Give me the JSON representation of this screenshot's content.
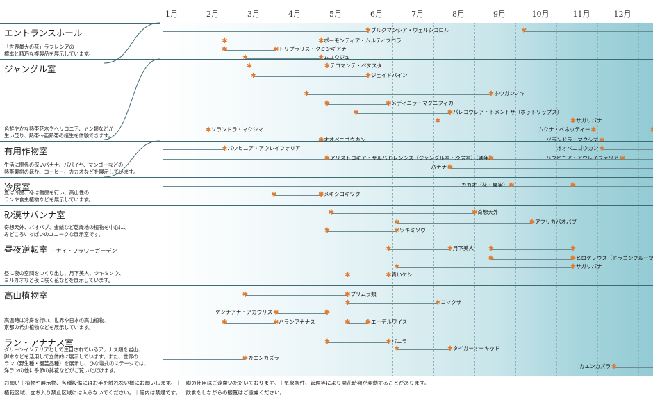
{
  "months": [
    "1月",
    "2月",
    "3月",
    "4月",
    "5月",
    "6月",
    "7月",
    "8月",
    "9月",
    "10月",
    "11月",
    "12月"
  ],
  "sections": [
    {
      "id": "entrance",
      "title": "エントランスホール",
      "subtitle": "",
      "desc": "「世界最大の花」ラフレシアの\n標本と精巧な複製品を展示しています。"
    },
    {
      "id": "jungle",
      "title": "ジャングル室",
      "subtitle": "",
      "desc": "色鮮やかな熱帯花木やヘリコニア、ヤシ類などが\n生い茂り、熱帯～亜熱帯の植生を体験できます。"
    },
    {
      "id": "useful",
      "title": "有用作物室",
      "subtitle": "",
      "desc": "生活に関係の深いバナナ、パパイヤ、マンゴーなどの\n熱帯果樹のほか、コーヒー、カカオなどを展示しています。"
    },
    {
      "id": "cool",
      "title": "冷房室",
      "subtitle": "",
      "desc": "夏は冷房、冬は暖房を行い、高山性の\nランや食虫植物などを展示しています。"
    },
    {
      "id": "desert",
      "title": "砂漠サバンナ室",
      "subtitle": "",
      "desc": "奇想天外、バオバブ、金鯱など乾燥地の植物を中心に、\nみどころいっぱいのユニークな展示室です。"
    },
    {
      "id": "night",
      "title": "昼夜逆転室",
      "subtitle": "－ナイトフラワーガーデン",
      "desc": "昼に夜の空間をつくり出し、月下美人、ツキミソウ、\nヨルガオなど夜に咲く花などを展示しています。"
    },
    {
      "id": "alpine",
      "title": "高山植物室",
      "subtitle": "",
      "desc": "高温時は冷房を行い、世界や日本の高山植物、\n京都の希少植物などを展示しています。"
    },
    {
      "id": "orchid",
      "title": "ラン・アナナス室",
      "subtitle": "",
      "desc": "グリーンインテリアとして注目されているアナナス類を岩山、\n脚木などを活用して立体的に展示しています。また、世界の\nラン（野生種・園芸品種）を展示し、ひな壇式のステージでは、\n洋ランの他に季節の鉢花などがご覧いただけます。"
    }
  ],
  "plants": [
    {
      "label": "ブルグマンシア・ウェルシコロル",
      "start": 1.0,
      "end": 6.0,
      "label_at": 6.0,
      "stars": [
        6.0
      ]
    },
    {
      "label": "",
      "start": 9.8,
      "end": 12.95,
      "label_at": null,
      "stars": [
        9.8
      ]
    },
    {
      "label": "ポーモンティア・ムルティフロラ",
      "start": 2.5,
      "end": 4.85,
      "label_at": 4.85,
      "stars": [
        2.5,
        4.85
      ]
    },
    {
      "label": "トリプラリス・クミンギアナ",
      "start": 2.5,
      "end": 3.75,
      "label_at": 3.75,
      "stars": [
        2.5,
        3.75
      ]
    },
    {
      "label": "ムユウジュ",
      "start": 3.0,
      "end": 4.85,
      "label_at": 4.85,
      "stars": [
        3.0,
        4.85
      ]
    },
    {
      "label": "テコマンテ・ベヌスタ",
      "start": 3.0,
      "end": 5.0,
      "label_at": 5.0,
      "stars": [
        3.1,
        5.0
      ]
    },
    {
      "label": "ジェイドバイン",
      "start": 3.2,
      "end": 6.0,
      "label_at": 6.0,
      "stars": [
        3.2,
        6.0
      ]
    },
    {
      "label": "ホウガンノキ",
      "start": 4.5,
      "end": 9.0,
      "label_at": 9.0,
      "stars": [
        4.5,
        9.0
      ]
    },
    {
      "label": "メディニラ・マグニフィカ",
      "start": 5.0,
      "end": 6.5,
      "label_at": 6.5,
      "stars": [
        5.0,
        6.5
      ]
    },
    {
      "label": "パレコウレア・トメントサ（ホットリップス）",
      "start": 5.7,
      "end": 8.0,
      "label_at": 8.0,
      "stars": [
        5.7,
        8.0
      ]
    },
    {
      "label": "サガリバナ",
      "start": 7.7,
      "end": 11.0,
      "label_at": 11.0,
      "stars": [
        7.7,
        11.0
      ]
    },
    {
      "label": "ムクナ・ベネッティー",
      "start": 11.5,
      "end": 12.95,
      "label_at": null,
      "label_left": "ムクナ・ベネッティー",
      "stars": [
        11.5,
        12.95
      ]
    },
    {
      "label": "ソランドラ・マクシマ",
      "start": 1.0,
      "end": 2.1,
      "label_at": 2.1,
      "stars": [
        2.1
      ]
    },
    {
      "label": "ソランドラ・マクシマ",
      "start": 11.7,
      "end": 12.95,
      "label_at": null,
      "label_left": "ソランドラ・マクシマ",
      "stars": [
        11.7
      ]
    },
    {
      "label": "オオベニゴウカン",
      "start": 1.0,
      "end": 4.85,
      "label_at": 4.85,
      "stars": [
        4.85
      ]
    },
    {
      "label": "オオベニゴウカン",
      "start": 11.7,
      "end": 12.95,
      "label_at": null,
      "label_left": "オオベニゴウカン",
      "stars": [
        11.7
      ]
    },
    {
      "label": "バウヒニア・アウレイフォリア",
      "start": 1.0,
      "end": 2.5,
      "label_at": 2.5,
      "stars": [
        2.5
      ]
    },
    {
      "label": "バウヒニア・アウレイフォリア",
      "start": 12.2,
      "end": 12.95,
      "label_at": null,
      "label_left": "バウヒニア・アウレイフォリア",
      "stars": [
        12.2
      ]
    },
    {
      "label": "アリストロキア・サルバドレンシス（ジャングル室・冷房室）（通年）",
      "start": 1.0,
      "end": 12.95,
      "label_at": 5.0,
      "stars": [
        5.0,
        9.0
      ]
    },
    {
      "label": "バナナ",
      "start": 8.0,
      "end": 12.95,
      "label_at": null,
      "label_left": "バナナ",
      "stars": [
        8.0
      ]
    },
    {
      "label": "カカオ（花・果実）",
      "start": 1.0,
      "end": 12.95,
      "label_at": null,
      "label_left": "カカオ（花・果実）",
      "stars": [
        9.5,
        11.0
      ]
    },
    {
      "label": "メキシコキワタ",
      "start": 3.7,
      "end": 4.85,
      "label_at": 4.85,
      "stars": [
        3.7,
        4.85
      ]
    },
    {
      "label": "奇想天外",
      "start": 5.1,
      "end": 8.6,
      "label_at": 8.6,
      "stars": [
        5.1,
        8.6
      ]
    },
    {
      "label": "アフリカバオバブ",
      "start": 6.7,
      "end": 10.0,
      "label_at": 10.0,
      "stars": [
        6.7,
        10.0
      ]
    },
    {
      "label": "ツキミソウ",
      "start": 5.0,
      "end": 6.7,
      "label_at": 6.7,
      "stars": [
        5.0,
        6.7
      ]
    },
    {
      "label": "",
      "start": 9.0,
      "end": 11.0,
      "label_at": null,
      "stars": [
        9.0,
        11.0
      ]
    },
    {
      "label": "月下美人",
      "start": 6.5,
      "end": 8.0,
      "label_at": 8.0,
      "stars": [
        6.5,
        8.0
      ]
    },
    {
      "label": "ヒロケレウス（ドラゴンフルーツ）",
      "start": 9.0,
      "end": 11.0,
      "label_at": 11.0,
      "stars": [
        9.0,
        11.0
      ]
    },
    {
      "label": "サガリバナ",
      "start": 6.7,
      "end": 11.0,
      "label_at": 11.0,
      "stars": [
        6.7,
        11.0
      ]
    },
    {
      "label": "青いケシ",
      "start": 5.5,
      "end": 6.5,
      "label_at": 6.5,
      "stars": [
        5.5,
        6.5
      ]
    },
    {
      "label": "プリムラ類",
      "start": 3.0,
      "end": 5.5,
      "label_at": 5.5,
      "stars": [
        3.0,
        5.5
      ]
    },
    {
      "label": "コマクサ",
      "start": 5.5,
      "end": 7.7,
      "label_at": 7.7,
      "stars": [
        5.5,
        7.7
      ]
    },
    {
      "label": "ゲンチアナ・アカウリス",
      "start": 3.75,
      "end": 5.0,
      "label_at": null,
      "label_left": "ゲンチアナ・アカウリス",
      "stars": [
        3.75,
        5.0
      ]
    },
    {
      "label": "エーデルワイス",
      "start": 5.5,
      "end": 6.0,
      "label_at": 6.0,
      "stars": [
        5.5,
        6.0
      ]
    },
    {
      "label": "ハランアナナス",
      "start": 2.5,
      "end": 3.75,
      "label_at": 3.75,
      "stars": [
        2.5,
        3.75
      ]
    },
    {
      "label": "バニラ",
      "start": 5.0,
      "end": 6.5,
      "label_at": 6.5,
      "stars": [
        5.0,
        6.5
      ]
    },
    {
      "label": "タイガーオーキッド",
      "start": 6.7,
      "end": 8.0,
      "label_at": 8.0,
      "stars": [
        6.7,
        8.0
      ]
    },
    {
      "label": "カエンカズラ",
      "start": 1.0,
      "end": 3.0,
      "label_at": 3.0,
      "stars": [
        3.0
      ]
    },
    {
      "label": "カエンカズラ",
      "start": 12.0,
      "end": 12.95,
      "label_at": null,
      "label_left": "カエンカズラ",
      "stars": [
        12.0
      ]
    }
  ],
  "footer": {
    "line1": "お願い｜植物や展示物、各種設備にはお手を触れない様にお願いします。｜三脚の使用はご遠慮いただいております。｜気象条件、管理等により開花時期が変動することがあります。",
    "line2": "植栽区域、立ち入り禁止区域には入らないでください。｜館内は禁煙です。｜飲食をしながらの観覧はご遠慮ください。"
  },
  "colors": {
    "accent_star": "#e07a2e",
    "line": "#6b8c93",
    "section_rule": "#3d6b74"
  }
}
